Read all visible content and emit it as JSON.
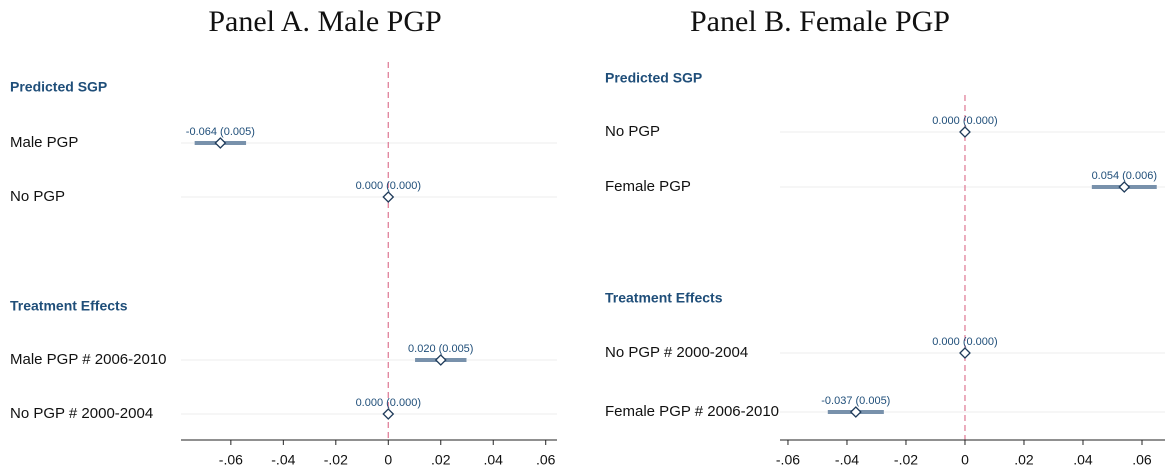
{
  "chart_data": [
    {
      "type": "coefplot",
      "title": "Panel A. Male PGP",
      "color": "#7891ab",
      "marker_color": "#1f3b5a",
      "refline": 0,
      "refline_color": "#e0809a",
      "xlim": [
        -0.079,
        0.0643
      ],
      "xticks": [
        {
          "value": -0.06,
          "label": "-.06"
        },
        {
          "value": -0.04,
          "label": "-.04"
        },
        {
          "value": -0.02,
          "label": "-.02"
        },
        0,
        {
          "value": 0.02,
          "label": ".02"
        },
        {
          "value": 0.04,
          "label": ".04"
        },
        {
          "value": 0.06,
          "label": ".06"
        }
      ],
      "groups": [
        {
          "name": "Predicted SGP",
          "categories": [
            "Male PGP",
            "No PGP"
          ],
          "values": [
            -0.064,
            0
          ],
          "errors": [
            0.0098,
            0
          ],
          "value_labels": [
            "-0.064 (0.005)",
            "0.000 (0.000)"
          ]
        },
        {
          "name": "Treatment Effects",
          "categories": [
            "Male PGP # 2006-2010",
            "No PGP # 2000-2004"
          ],
          "values": [
            0.02,
            0
          ],
          "errors": [
            0.0098,
            0
          ],
          "value_labels": [
            "0.020 (0.005)",
            "0.000 (0.000)"
          ]
        }
      ]
    },
    {
      "type": "coefplot",
      "title": "Panel B. Female PGP",
      "color": "#7891ab",
      "marker_color": "#1f3b5a",
      "refline": 0,
      "refline_color": "#e0809a",
      "xlim": [
        -0.0627,
        0.0678
      ],
      "xticks": [
        {
          "value": -0.06,
          "label": "-.06"
        },
        {
          "value": -0.04,
          "label": "-.04"
        },
        {
          "value": -0.02,
          "label": "-.02"
        },
        0,
        {
          "value": 0.02,
          "label": ".02"
        },
        {
          "value": 0.04,
          "label": ".04"
        },
        {
          "value": 0.06,
          "label": ".06"
        }
      ],
      "groups": [
        {
          "name": "Predicted SGP",
          "categories": [
            "No PGP",
            "Female PGP"
          ],
          "values": [
            0,
            0.054
          ],
          "errors": [
            0,
            0.011
          ],
          "value_labels": [
            "0.000 (0.000)",
            "0.054 (0.006)"
          ]
        },
        {
          "name": "Treatment Effects",
          "categories": [
            "No PGP # 2000-2004",
            "Female PGP # 2006-2010"
          ],
          "values": [
            0,
            -0.037
          ],
          "errors": [
            0,
            0.0095
          ],
          "value_labels": [
            "0.000 (0.000)",
            "-0.037 (0.005)"
          ]
        }
      ]
    }
  ]
}
